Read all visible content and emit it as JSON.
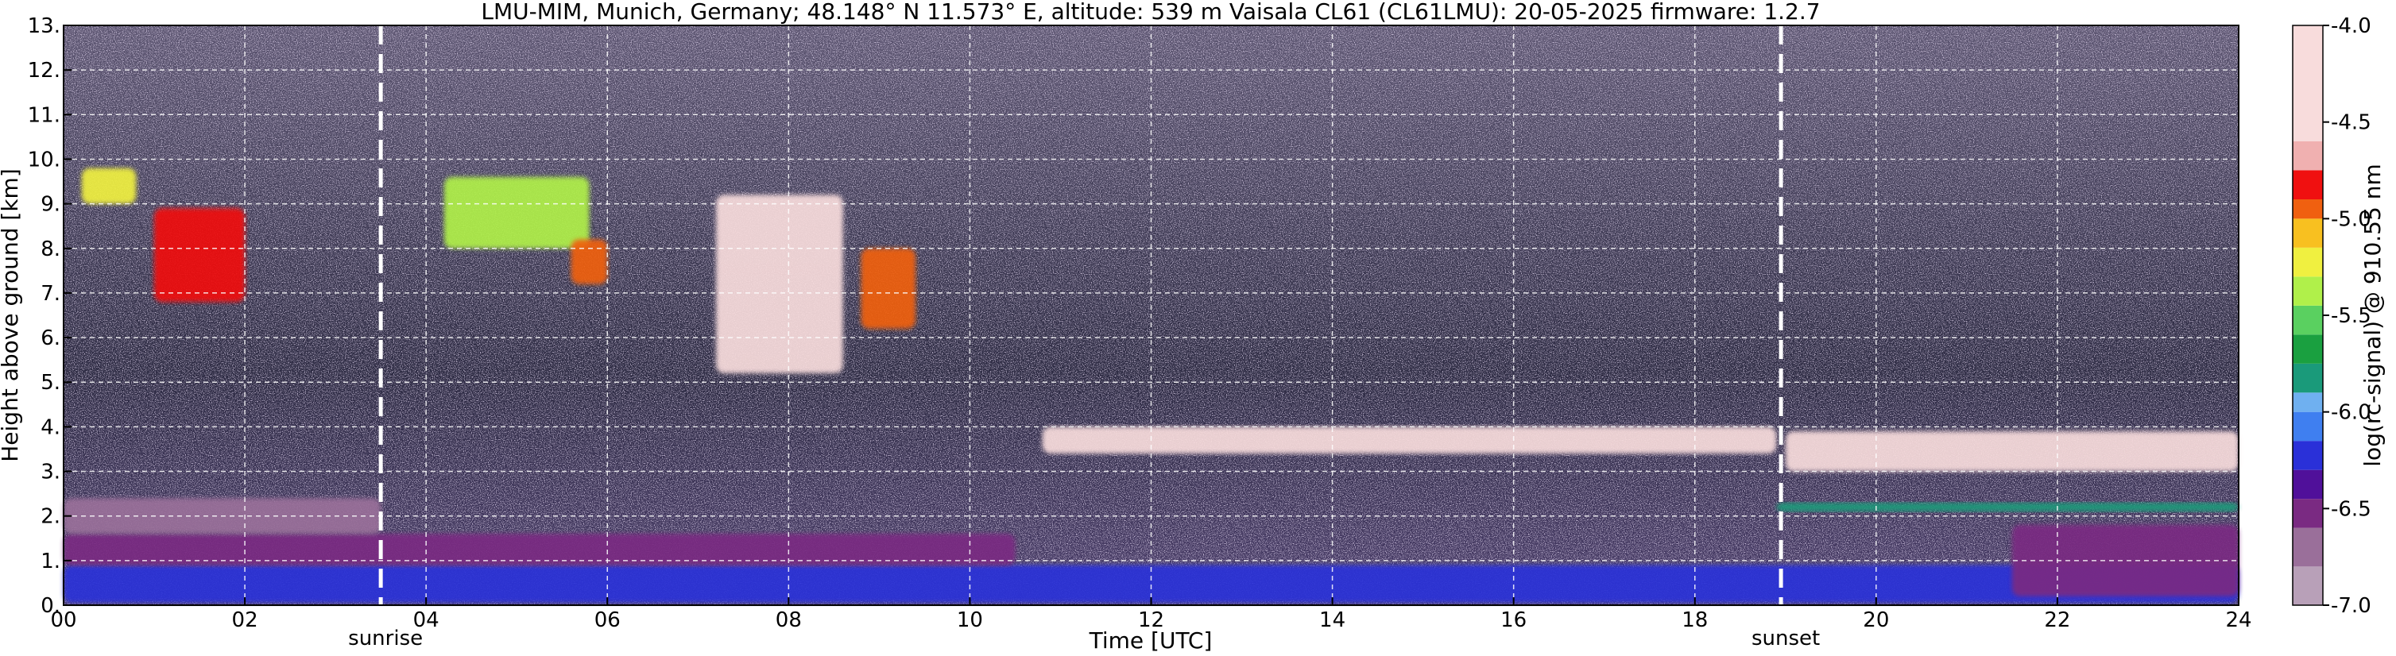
{
  "chart_data": {
    "type": "heatmap",
    "title": "LMU-MIM, Munich, Germany; 48.148° N 11.573° E, altitude: 539 m    Vaisala CL61 (CL61LMU): 20-05-2025    firmware: 1.2.7",
    "xlabel": "Time [UTC]",
    "ylabel": "Height above ground [km]",
    "xlim": [
      0,
      24
    ],
    "ylim": [
      0,
      13
    ],
    "xticks": [
      "00",
      "02",
      "04",
      "06",
      "08",
      "10",
      "12",
      "14",
      "16",
      "18",
      "20",
      "22",
      "24"
    ],
    "yticks": [
      "0.",
      "1.",
      "2.",
      "3.",
      "4.",
      "5.",
      "6.",
      "7.",
      "8.",
      "9.",
      "10.",
      "11.",
      "12.",
      "13."
    ],
    "grid": true,
    "annotations": [
      {
        "label": "sunrise",
        "x": 3.5
      },
      {
        "label": "sunset",
        "x": 18.95
      }
    ],
    "colorbar": {
      "label": "log(rc-signal) @ 910.55 nm",
      "range": [
        -7.0,
        -4.0
      ],
      "ticks": [
        "-4.0",
        "-4.5",
        "-5.0",
        "-5.5",
        "-6.0",
        "-6.5",
        "-7.0"
      ]
    },
    "features": [
      {
        "t0": 0.0,
        "t1": 24.0,
        "h0": 0.05,
        "h1": 0.9,
        "value": -6.2
      },
      {
        "t0": 0.0,
        "t1": 10.5,
        "h0": 0.9,
        "h1": 1.6,
        "value": -6.5
      },
      {
        "t0": 0.0,
        "t1": 3.5,
        "h0": 1.6,
        "h1": 2.4,
        "value": -6.8
      },
      {
        "t0": 1.0,
        "t1": 2.0,
        "h0": 6.8,
        "h1": 8.9,
        "value": -4.8
      },
      {
        "t0": 0.2,
        "t1": 0.8,
        "h0": 9.0,
        "h1": 9.8,
        "value": -5.3
      },
      {
        "t0": 4.2,
        "t1": 5.8,
        "h0": 8.0,
        "h1": 9.6,
        "value": -5.4
      },
      {
        "t0": 5.6,
        "t1": 6.0,
        "h0": 7.2,
        "h1": 8.2,
        "value": -5.0
      },
      {
        "t0": 7.2,
        "t1": 8.6,
        "h0": 5.2,
        "h1": 9.2,
        "value": -4.3
      },
      {
        "t0": 8.8,
        "t1": 9.4,
        "h0": 6.2,
        "h1": 8.0,
        "value": -5.0
      },
      {
        "t0": 10.8,
        "t1": 18.9,
        "h0": 3.4,
        "h1": 4.0,
        "value": -4.2
      },
      {
        "t0": 19.0,
        "t1": 24.0,
        "h0": 3.0,
        "h1": 3.9,
        "value": -4.2
      },
      {
        "t0": 18.9,
        "t1": 24.0,
        "h0": 2.1,
        "h1": 2.3,
        "value": -5.8
      },
      {
        "t0": 21.5,
        "t1": 24.0,
        "h0": 0.2,
        "h1": 1.8,
        "value": -6.6
      }
    ]
  }
}
